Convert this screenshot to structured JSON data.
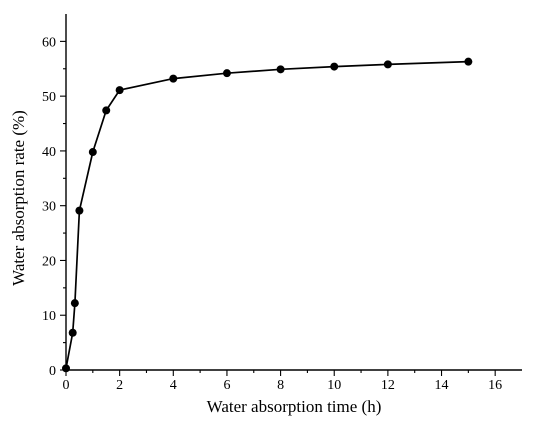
{
  "chart_data": {
    "type": "line",
    "title": "",
    "xlabel": "Water absorption time (h)",
    "ylabel": "Water absorption rate (%)",
    "xlim": [
      0,
      17
    ],
    "ylim": [
      0,
      65
    ],
    "xticks": [
      0,
      2,
      4,
      6,
      8,
      10,
      12,
      14,
      16
    ],
    "yticks": [
      0,
      10,
      20,
      30,
      40,
      50,
      60
    ],
    "grid": false,
    "series": [
      {
        "marker": "filled-circle",
        "color": "#000000",
        "x": [
          0,
          0.25,
          0.33,
          0.5,
          1,
          1.5,
          2,
          4,
          6,
          8,
          10,
          12,
          15
        ],
        "y": [
          0.3,
          6.8,
          12.2,
          29.1,
          39.8,
          47.4,
          51.1,
          53.2,
          54.2,
          54.9,
          55.4,
          55.8,
          56.3
        ]
      }
    ]
  }
}
